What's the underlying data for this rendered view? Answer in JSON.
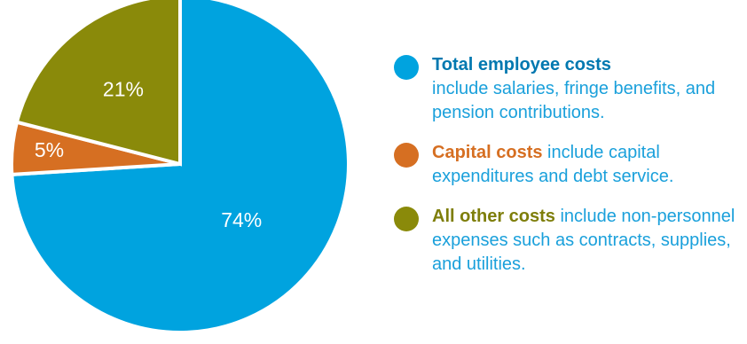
{
  "chart_data": {
    "type": "pie",
    "title": "",
    "slices": [
      {
        "name": "Total employee costs",
        "value": 74,
        "label": "74%",
        "color": "#00a3df"
      },
      {
        "name": "Capital costs",
        "value": 5,
        "label": "5%",
        "color": "#d66f22"
      },
      {
        "name": "All other costs",
        "value": 21,
        "label": "21%",
        "color": "#8a8a0a"
      }
    ]
  },
  "legend": {
    "text_color": "#1aa0db",
    "items": [
      {
        "title": "Total employee costs",
        "text": "include salaries, fringe benefits, and pension contributions.",
        "color": "#00a3df",
        "title_color": "#0078b0"
      },
      {
        "title": "Capital costs",
        "text": "include capital expenditures and debt service.",
        "color": "#d66f22",
        "title_color": "#d66f22"
      },
      {
        "title": "All other costs",
        "text": "include non-personnel expenses such as contracts, supplies, and utilities.",
        "color": "#8a8a0a",
        "title_color": "#7e7e0a"
      }
    ]
  }
}
